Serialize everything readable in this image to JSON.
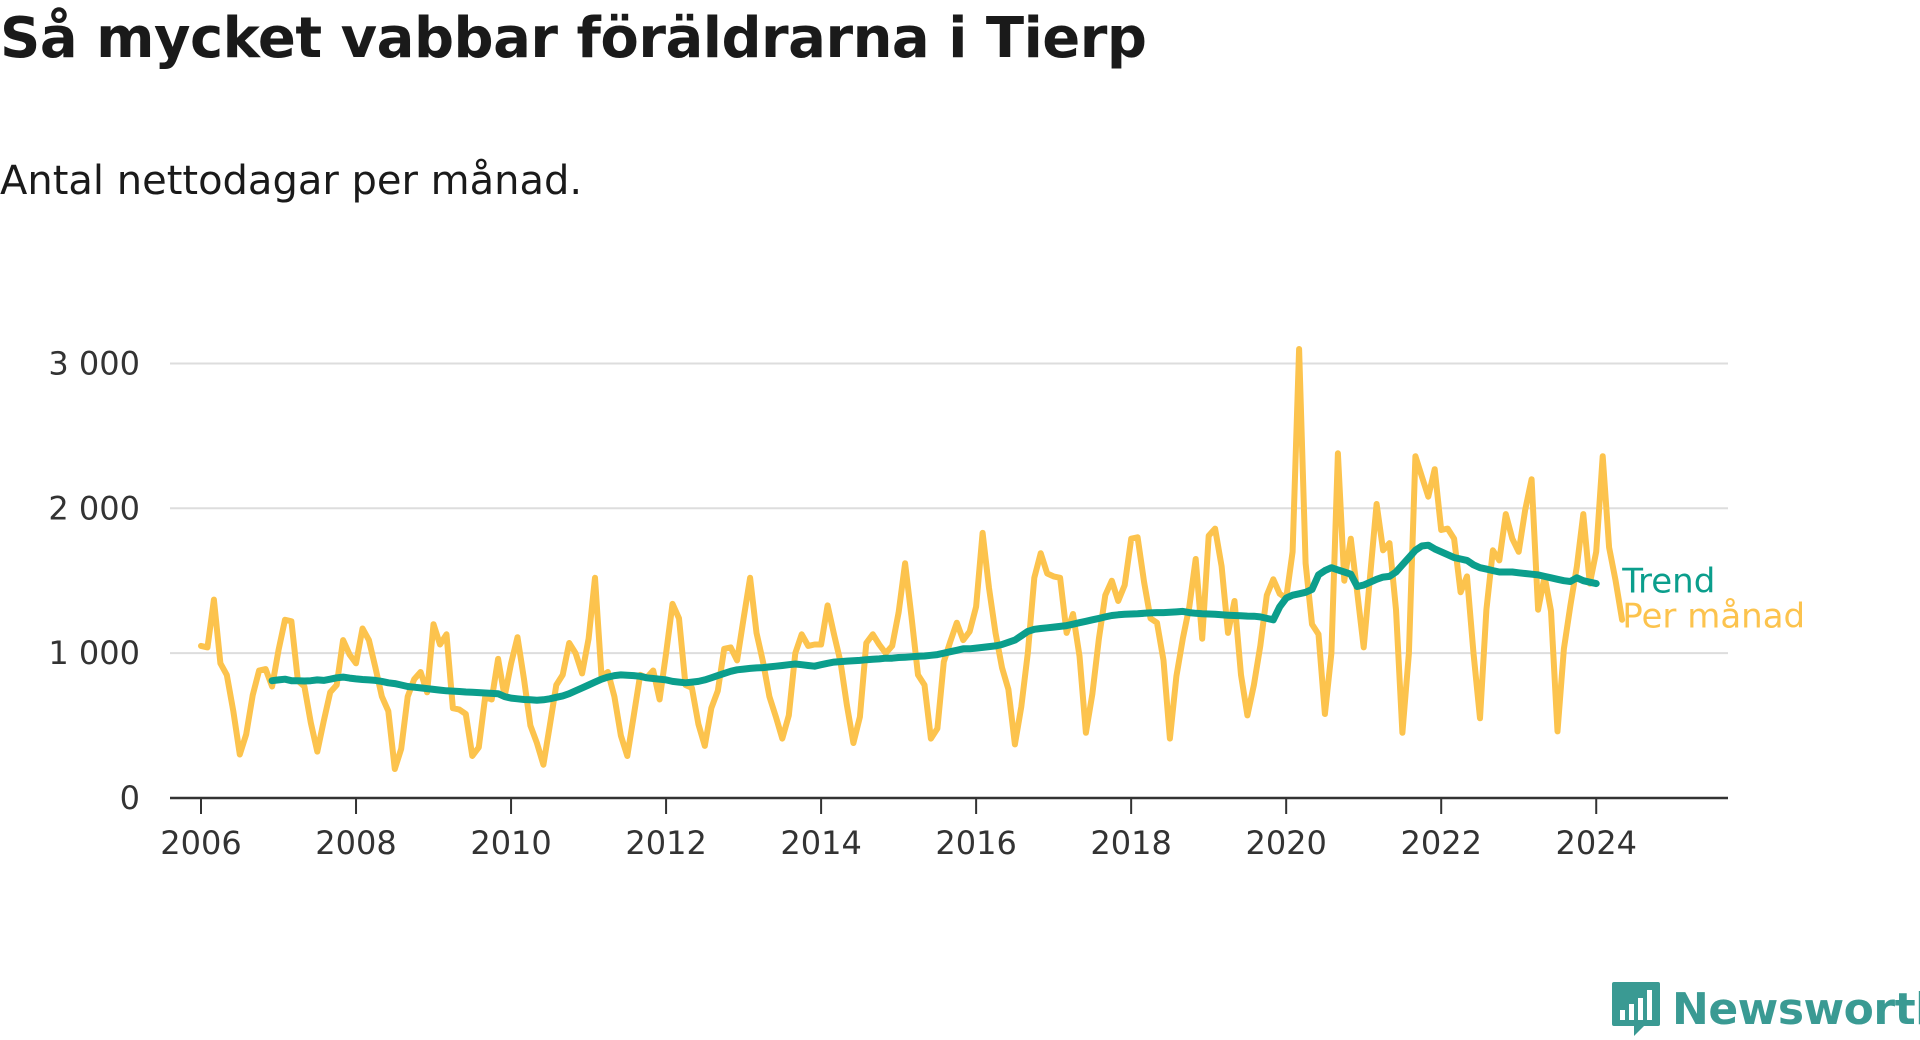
{
  "title": "Så mycket vabbar föräldrarna i Tierp",
  "subtitle": "Antal nettodagar per månad.",
  "brand": "Newsworthy",
  "colors": {
    "per_month": "#fcc34d",
    "trend": "#0b9e8c",
    "grid": "#dddddd",
    "axis": "#333333",
    "brand": "#3a9a93"
  },
  "chart_data": {
    "type": "line",
    "title": "Så mycket vabbar föräldrarna i Tierp",
    "subtitle": "Antal nettodagar per månad.",
    "xlabel": "",
    "ylabel": "",
    "xlim": [
      2005.6,
      2025.7
    ],
    "ylim": [
      0,
      3300
    ],
    "x_ticks": [
      2006,
      2008,
      2010,
      2012,
      2014,
      2016,
      2018,
      2020,
      2022,
      2024
    ],
    "x_tick_labels": [
      "2006",
      "2008",
      "2010",
      "2012",
      "2014",
      "2016",
      "2018",
      "2020",
      "2022",
      "2024"
    ],
    "y_ticks": [
      0,
      1000,
      2000,
      3000
    ],
    "y_tick_labels": [
      "0",
      "1 000",
      "2 000",
      "3 000"
    ],
    "series": [
      {
        "name": "Per månad",
        "x_start": 2006.0,
        "x_step": 0.0833333,
        "values": [
          1050,
          1040,
          1370,
          930,
          850,
          600,
          300,
          440,
          710,
          880,
          890,
          770,
          1020,
          1230,
          1220,
          810,
          770,
          520,
          320,
          530,
          730,
          780,
          1090,
          990,
          930,
          1170,
          1090,
          900,
          700,
          600,
          200,
          340,
          700,
          820,
          870,
          730,
          1200,
          1060,
          1130,
          620,
          610,
          580,
          290,
          350,
          700,
          680,
          960,
          700,
          930,
          1110,
          820,
          500,
          380,
          230,
          500,
          780,
          850,
          1070,
          1000,
          860,
          1100,
          1520,
          840,
          870,
          700,
          430,
          290,
          570,
          850,
          830,
          880,
          680,
          1000,
          1340,
          1240,
          780,
          760,
          510,
          360,
          620,
          740,
          1030,
          1040,
          950,
          1240,
          1520,
          1140,
          940,
          700,
          560,
          410,
          570,
          1000,
          1130,
          1050,
          1060,
          1060,
          1330,
          1130,
          940,
          640,
          380,
          560,
          1070,
          1130,
          1060,
          1000,
          1050,
          1280,
          1620,
          1250,
          850,
          780,
          410,
          480,
          940,
          1080,
          1210,
          1090,
          1150,
          1320,
          1830,
          1450,
          1140,
          900,
          750,
          370,
          630,
          1000,
          1520,
          1690,
          1550,
          1530,
          1520,
          1140,
          1270,
          980,
          450,
          720,
          1100,
          1400,
          1500,
          1360,
          1470,
          1790,
          1800,
          1490,
          1240,
          1210,
          950,
          410,
          840,
          1100,
          1320,
          1650,
          1100,
          1810,
          1860,
          1600,
          1140,
          1360,
          850,
          570,
          780,
          1050,
          1400,
          1510,
          1410,
          1380,
          1700,
          3100,
          1620,
          1200,
          1130,
          580,
          1000,
          2380,
          1500,
          1790,
          1420,
          1040,
          1540,
          2030,
          1710,
          1760,
          1300,
          450,
          1000,
          2360,
          2220,
          2080,
          2270,
          1850,
          1860,
          1790,
          1420,
          1530,
          1000,
          550,
          1300,
          1710,
          1640,
          1960,
          1790,
          1700,
          1990,
          2200,
          1300,
          1530,
          1290,
          460,
          1030,
          1330,
          1600,
          1960,
          1480,
          1700,
          2360,
          1730,
          1500,
          1230
        ]
      },
      {
        "name": "Trend",
        "x_start": 2006.9166667,
        "x_step": 0.0833333,
        "values": [
          810,
          815,
          820,
          810,
          810,
          808,
          810,
          815,
          812,
          820,
          830,
          835,
          828,
          822,
          818,
          815,
          812,
          805,
          795,
          790,
          780,
          770,
          765,
          760,
          755,
          750,
          745,
          740,
          738,
          735,
          732,
          730,
          728,
          725,
          722,
          720,
          700,
          690,
          685,
          680,
          678,
          675,
          678,
          685,
          695,
          705,
          720,
          740,
          760,
          780,
          800,
          820,
          835,
          845,
          850,
          848,
          845,
          840,
          830,
          825,
          820,
          815,
          805,
          800,
          795,
          800,
          805,
          815,
          830,
          845,
          860,
          875,
          885,
          890,
          895,
          898,
          900,
          905,
          910,
          915,
          920,
          925,
          920,
          915,
          910,
          920,
          930,
          938,
          942,
          945,
          948,
          950,
          955,
          958,
          960,
          965,
          965,
          970,
          972,
          975,
          978,
          980,
          985,
          990,
          1000,
          1010,
          1020,
          1030,
          1030,
          1035,
          1040,
          1045,
          1050,
          1060,
          1075,
          1090,
          1120,
          1150,
          1165,
          1170,
          1175,
          1180,
          1185,
          1190,
          1200,
          1210,
          1220,
          1230,
          1240,
          1250,
          1260,
          1265,
          1268,
          1270,
          1272,
          1275,
          1278,
          1280,
          1280,
          1282,
          1285,
          1288,
          1280,
          1275,
          1272,
          1270,
          1268,
          1265,
          1262,
          1260,
          1258,
          1256,
          1255,
          1250,
          1240,
          1230,
          1320,
          1380,
          1400,
          1410,
          1420,
          1440,
          1540,
          1570,
          1590,
          1575,
          1560,
          1545,
          1460,
          1470,
          1490,
          1510,
          1525,
          1530,
          1560,
          1610,
          1660,
          1710,
          1740,
          1745,
          1720,
          1700,
          1680,
          1660,
          1650,
          1640,
          1610,
          1590,
          1580,
          1570,
          1560,
          1560,
          1560,
          1555,
          1550,
          1545,
          1540,
          1530,
          1520,
          1510,
          1500,
          1495,
          1520,
          1500,
          1490,
          1480
        ]
      }
    ],
    "legend": [
      "Trend",
      "Per månad"
    ],
    "legend_position": "right, at line ends"
  }
}
